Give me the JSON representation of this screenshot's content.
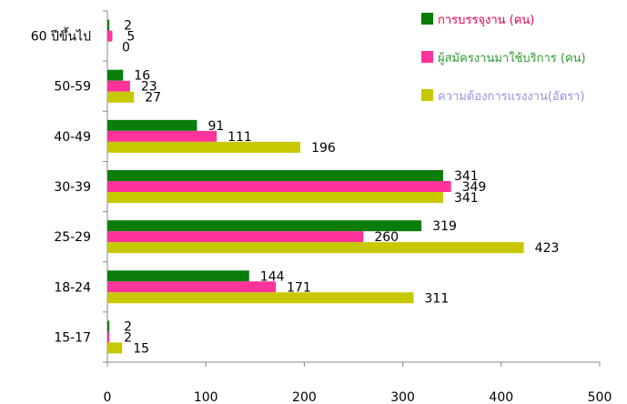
{
  "chart_data": {
    "type": "bar",
    "orientation": "horizontal",
    "categories": [
      "60 ปีขึ้นไป",
      "50-59",
      "40-49",
      "30-39",
      "25-29",
      "18-24",
      "15-17"
    ],
    "series": [
      {
        "name": "การบรรจุงาน (คน)",
        "values": [
          2,
          16,
          91,
          341,
          319,
          144,
          2
        ],
        "color": "#0a7d0a",
        "legend_text_color": "#e8004c"
      },
      {
        "name": "ผู้สมัครงานมาใช้บริการ (คน)",
        "values": [
          5,
          23,
          111,
          349,
          260,
          171,
          2
        ],
        "color": "#ff3399",
        "legend_text_color": "#2e9c2e"
      },
      {
        "name": "ความต้องการแรงงาน(อัตรา)",
        "values": [
          0,
          27,
          196,
          341,
          423,
          311,
          15
        ],
        "color": "#c8c800",
        "legend_text_color": "#9b8fe0"
      }
    ],
    "xlim": [
      0,
      500
    ],
    "xticks": [
      0,
      100,
      200,
      300,
      400,
      500
    ],
    "grid": false,
    "legend_position": "top-right"
  }
}
